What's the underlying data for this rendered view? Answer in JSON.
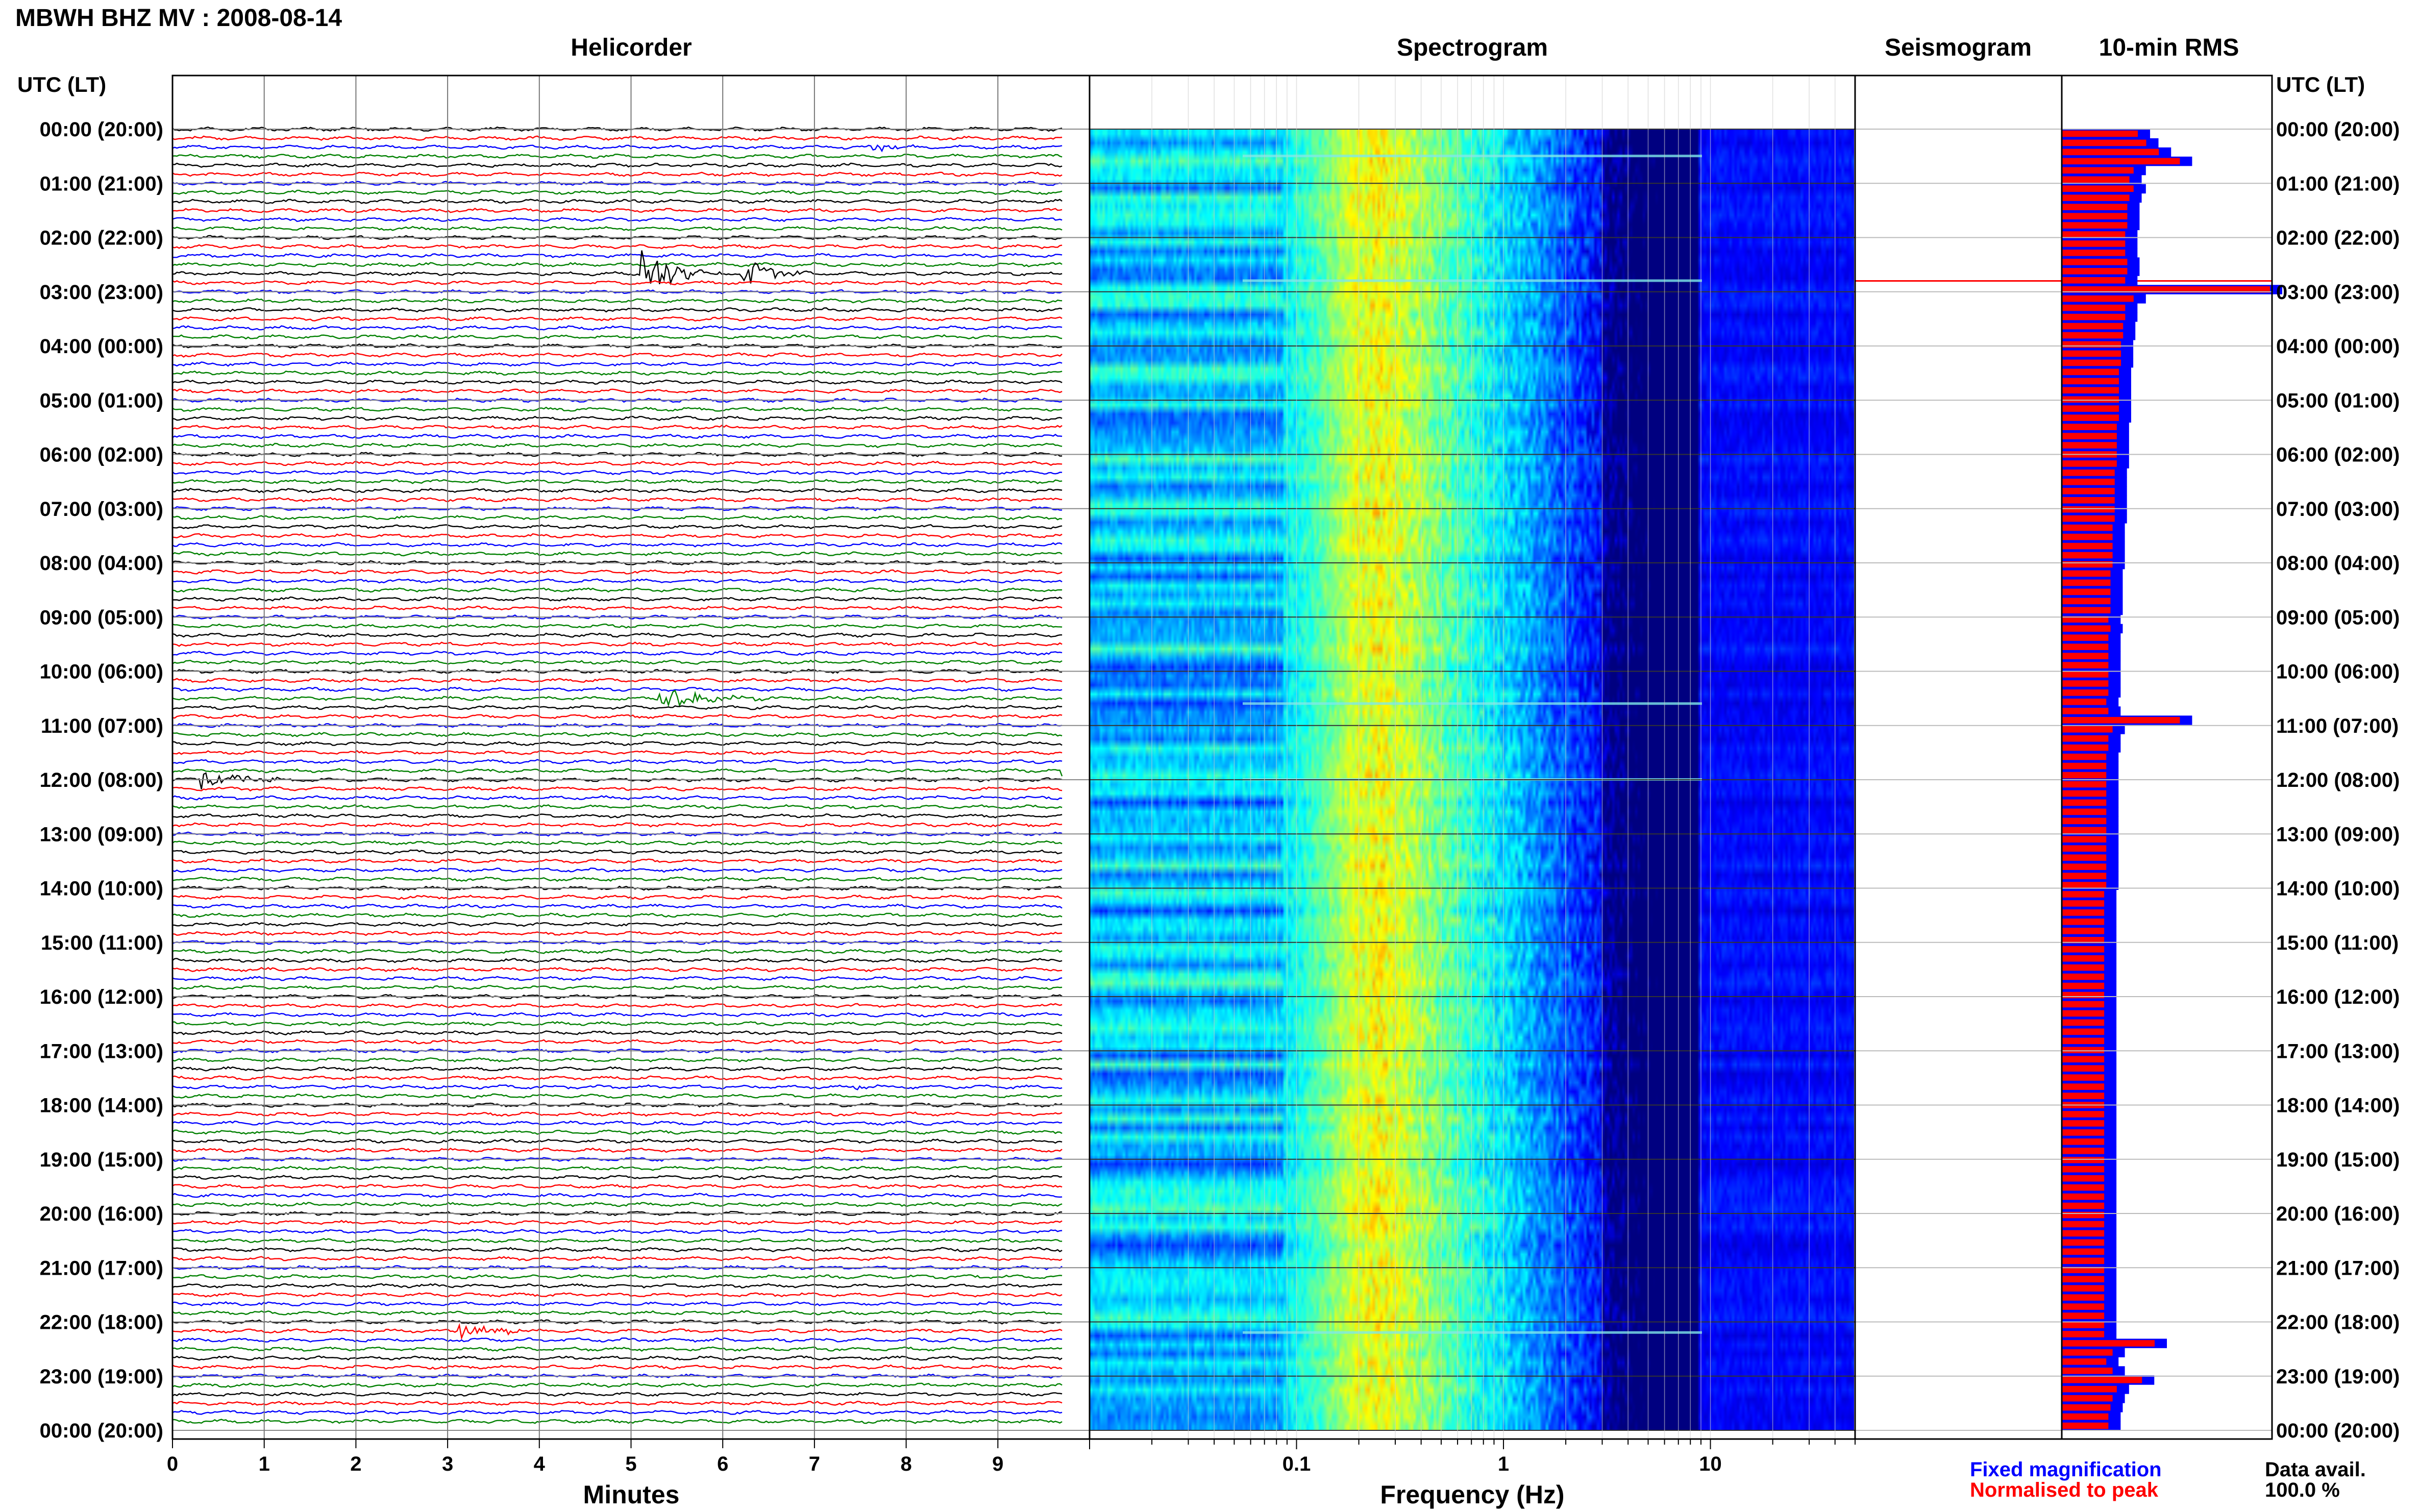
{
  "header": {
    "title": "MBWH BHZ MV : 2008-08-14"
  },
  "panels": {
    "helicorder": "Helicorder",
    "spectrogram": "Spectrogram",
    "seismogram": "Seismogram",
    "rms": "10-min RMS"
  },
  "axes": {
    "time_header": "UTC (LT)",
    "helicorder_xlabel": "Minutes",
    "spectrogram_xlabel": "Frequency (Hz)"
  },
  "legend": {
    "fixed": "Fixed magnification",
    "normalised": "Normalised to peak"
  },
  "data_availability": {
    "label": "Data avail.",
    "value": "100.0 %"
  },
  "colors": {
    "trace_cycle": [
      "#000000",
      "#ff0000",
      "#0000ff",
      "#008000"
    ],
    "fixed": "#0000ff",
    "normalised": "#ff0000"
  },
  "chart_data": [
    {
      "type": "line",
      "name": "Helicorder",
      "xlabel": "Minutes",
      "xticks": [
        0,
        1,
        2,
        3,
        4,
        5,
        6,
        7,
        8,
        9
      ],
      "xlim": [
        0,
        10
      ],
      "ylabels": [
        "00:00 (20:00)",
        "01:00 (21:00)",
        "02:00 (22:00)",
        "03:00 (23:00)",
        "04:00 (00:00)",
        "05:00 (01:00)",
        "06:00 (02:00)",
        "07:00 (03:00)",
        "08:00 (04:00)",
        "09:00 (05:00)",
        "10:00 (06:00)",
        "11:00 (07:00)",
        "12:00 (08:00)",
        "13:00 (09:00)",
        "14:00 (10:00)",
        "15:00 (11:00)",
        "16:00 (12:00)",
        "17:00 (13:00)",
        "18:00 (14:00)",
        "19:00 (15:00)",
        "20:00 (16:00)",
        "21:00 (17:00)",
        "22:00 (18:00)",
        "23:00 (19:00)",
        "00:00 (20:00)"
      ],
      "lines_per_hour": 6,
      "events": [
        {
          "hour": 0.33,
          "minute": 7.6,
          "amp": 0.6,
          "duration": 0.8
        },
        {
          "hour": 2.67,
          "minute": 5.1,
          "amp": 3.5,
          "duration": 0.9
        },
        {
          "hour": 2.67,
          "minute": 6.2,
          "amp": 2.0,
          "duration": 0.8
        },
        {
          "hour": 10.5,
          "minute": 5.3,
          "amp": 1.4,
          "duration": 1.4
        },
        {
          "hour": 12.0,
          "minute": 0.3,
          "amp": 1.0,
          "duration": 1.5
        },
        {
          "hour": 11.83,
          "minute": 9.7,
          "amp": 0.8,
          "duration": 0.3
        },
        {
          "hour": 17.67,
          "minute": 7.4,
          "amp": 0.4,
          "duration": 0.6
        },
        {
          "hour": 22.17,
          "minute": 3.1,
          "amp": 1.2,
          "duration": 1.0
        }
      ]
    },
    {
      "type": "heatmap",
      "name": "Spectrogram",
      "xlabel": "Frequency (Hz)",
      "xscale": "log",
      "xticks": [
        0.1,
        1,
        10
      ],
      "xlim": [
        0.01,
        50
      ],
      "peak_frequency": 0.25
    },
    {
      "type": "line",
      "name": "Seismogram",
      "series": [
        {
          "name": "Fixed magnification",
          "color": "#0000ff"
        },
        {
          "name": "Normalised to peak",
          "color": "#ff0000"
        }
      ],
      "spikes_hours": [
        0.5,
        2.8,
        10.6,
        12.0,
        22.2
      ]
    },
    {
      "type": "bar",
      "name": "10-min RMS",
      "orientation": "horizontal",
      "interval_minutes": 10,
      "series": [
        {
          "name": "Fixed magnification",
          "color": "#0000ff"
        },
        {
          "name": "Normalised to peak",
          "color": "#ff0000"
        }
      ],
      "values": [
        0.42,
        0.46,
        0.52,
        0.62,
        0.4,
        0.38,
        0.4,
        0.38,
        0.37,
        0.37,
        0.37,
        0.36,
        0.36,
        0.36,
        0.37,
        0.37,
        0.36,
        1.05,
        0.4,
        0.36,
        0.36,
        0.35,
        0.35,
        0.34,
        0.34,
        0.34,
        0.33,
        0.33,
        0.33,
        0.33,
        0.33,
        0.33,
        0.32,
        0.32,
        0.32,
        0.32,
        0.32,
        0.31,
        0.31,
        0.31,
        0.31,
        0.31,
        0.31,
        0.3,
        0.3,
        0.3,
        0.3,
        0.3,
        0.29,
        0.29,
        0.29,
        0.29,
        0.29,
        0.28,
        0.29,
        0.28,
        0.28,
        0.28,
        0.28,
        0.28,
        0.28,
        0.28,
        0.27,
        0.28,
        0.62,
        0.3,
        0.28,
        0.28,
        0.27,
        0.27,
        0.27,
        0.27,
        0.27,
        0.27,
        0.27,
        0.27,
        0.27,
        0.27,
        0.27,
        0.27,
        0.27,
        0.27,
        0.27,
        0.26,
        0.26,
        0.26,
        0.26,
        0.26,
        0.26,
        0.26,
        0.26,
        0.26,
        0.26,
        0.26,
        0.26,
        0.26,
        0.26,
        0.26,
        0.26,
        0.26,
        0.26,
        0.26,
        0.26,
        0.26,
        0.26,
        0.26,
        0.26,
        0.26,
        0.26,
        0.26,
        0.26,
        0.26,
        0.26,
        0.26,
        0.26,
        0.26,
        0.26,
        0.26,
        0.26,
        0.26,
        0.26,
        0.26,
        0.26,
        0.26,
        0.26,
        0.26,
        0.26,
        0.26,
        0.26,
        0.26,
        0.26,
        0.26,
        0.5,
        0.3,
        0.27,
        0.3,
        0.44,
        0.32,
        0.3,
        0.29,
        0.28,
        0.28
      ]
    }
  ]
}
